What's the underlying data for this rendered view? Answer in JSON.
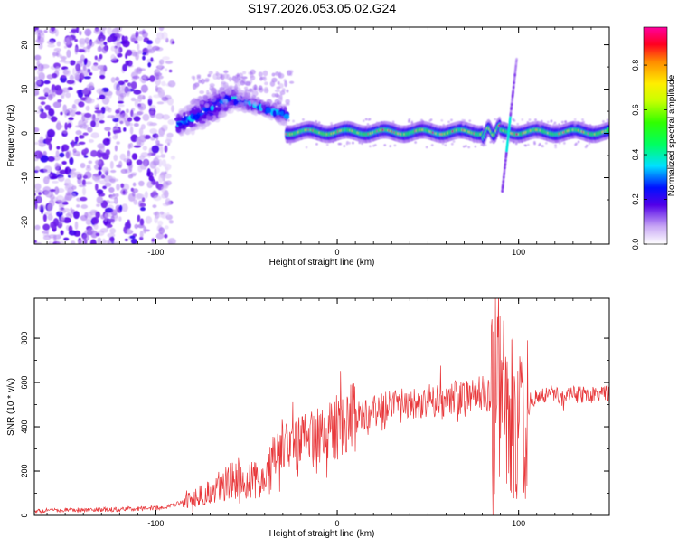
{
  "title": "S197.2026.053.05.02.G24",
  "chart_data": [
    {
      "type": "heatmap",
      "xlabel": "Height of straight line (km)",
      "ylabel": "Frequency (Hz)",
      "xlim": [
        -167,
        150
      ],
      "ylim": [
        -25,
        24
      ],
      "xticks": [
        -100,
        0,
        100
      ],
      "xtick_labels": [
        "-100",
        "0",
        "100"
      ],
      "yticks": [
        -20,
        -10,
        0,
        10,
        20
      ],
      "ytick_labels": [
        "-20",
        "-10",
        "0",
        "10",
        "20"
      ],
      "colorbar": {
        "label": "Normalized spectral amplitude",
        "range": [
          0,
          0.97
        ],
        "ticks": [
          0.0,
          0.2,
          0.4,
          0.6,
          0.8
        ],
        "tick_labels": [
          "0.0",
          "0.2",
          "0.4",
          "0.6",
          "0.8"
        ]
      },
      "features": [
        {
          "name": "noise-region",
          "x_range": [
            -167,
            -88
          ],
          "freq_range": [
            -25,
            24
          ],
          "amplitude": 0.15
        },
        {
          "name": "rising-trace",
          "x_range": [
            -88,
            -28
          ],
          "freq_center": [
            2,
            8,
            4
          ],
          "amplitude": 0.3
        },
        {
          "name": "steady-trace",
          "x_range": [
            -28,
            150
          ],
          "freq_center": 0.3,
          "amplitude": 0.45
        },
        {
          "name": "spike",
          "x": 95,
          "freq_range": [
            -13,
            17
          ],
          "amplitude": 0.15
        }
      ]
    },
    {
      "type": "line",
      "xlabel": "Height of straight line (km)",
      "ylabel": "SNR (10 * v/v)",
      "xlim": [
        -167,
        150
      ],
      "ylim": [
        0,
        980
      ],
      "xticks": [
        -100,
        0,
        100
      ],
      "xtick_labels": [
        "-100",
        "0",
        "100"
      ],
      "yticks": [
        0,
        200,
        400,
        600,
        800
      ],
      "ytick_labels": [
        "0",
        "200",
        "400",
        "600",
        "800"
      ],
      "color": "#e8383b",
      "series": [
        {
          "name": "SNR",
          "x": [
            -167,
            -150,
            -130,
            -110,
            -95,
            -85,
            -75,
            -65,
            -55,
            -45,
            -40,
            -35,
            -30,
            -25,
            -20,
            -10,
            0,
            10,
            20,
            30,
            40,
            50,
            60,
            70,
            80,
            88,
            92,
            96,
            100,
            104,
            110,
            120,
            130,
            140,
            150
          ],
          "y": [
            20,
            25,
            25,
            30,
            35,
            60,
            90,
            130,
            170,
            160,
            150,
            250,
            330,
            300,
            340,
            360,
            400,
            440,
            470,
            490,
            500,
            510,
            520,
            530,
            550,
            560,
            520,
            450,
            380,
            450,
            540,
            545,
            545,
            545,
            550
          ]
        }
      ]
    }
  ]
}
